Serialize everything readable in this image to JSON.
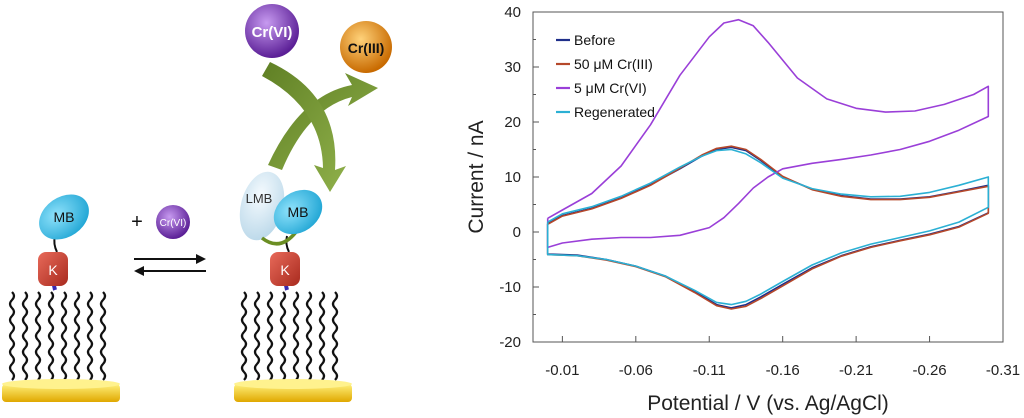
{
  "schematic": {
    "mb_label": "MB",
    "k_label": "K",
    "lmb_label": "LMB",
    "plus_sign": "+",
    "reactant_label": "Cr(VI)",
    "product_label": "Cr(III)",
    "colors": {
      "mb": "#3cc0e8",
      "lmb": "#cfe3ef",
      "k": "#c0392b",
      "crvi": "#7b2fb8",
      "criii": "#e8890c",
      "gold": "#f2cc1d",
      "arrow": "#6b8e23"
    }
  },
  "chart_data": {
    "type": "line",
    "xlabel": "Potential / V (vs. Ag/AgCl)",
    "ylabel": "Current / nA",
    "xlim": [
      0.01,
      -0.31
    ],
    "ylim": [
      -20,
      40
    ],
    "x_ticks": [
      -0.01,
      -0.06,
      -0.11,
      -0.16,
      -0.21,
      -0.26,
      -0.31
    ],
    "x_tick_labels": [
      "-0.01",
      "-0.06",
      "-0.11",
      "-0.16",
      "-0.21",
      "-0.26",
      "-0.31"
    ],
    "y_ticks": [
      -20,
      -10,
      0,
      10,
      20,
      30,
      40
    ],
    "y_tick_labels": [
      "-20",
      "-10",
      "0",
      "10",
      "20",
      "30",
      "40"
    ],
    "grid": false,
    "legend_position": "top-left",
    "series": [
      {
        "name": "Before",
        "color": "#1f2f8a",
        "x": [
          0.0,
          -0.01,
          -0.03,
          -0.05,
          -0.07,
          -0.09,
          -0.105,
          -0.115,
          -0.125,
          -0.135,
          -0.145,
          -0.16,
          -0.18,
          -0.2,
          -0.22,
          -0.24,
          -0.26,
          -0.28,
          -0.3,
          -0.3,
          -0.28,
          -0.26,
          -0.24,
          -0.22,
          -0.2,
          -0.18,
          -0.16,
          -0.145,
          -0.135,
          -0.125,
          -0.115,
          -0.1,
          -0.08,
          -0.06,
          -0.04,
          -0.02,
          0.0,
          0.0
        ],
        "y": [
          1.5,
          3.0,
          4.3,
          6.2,
          8.6,
          11.5,
          13.8,
          15.0,
          15.4,
          14.8,
          13.0,
          10.0,
          7.8,
          6.6,
          6.0,
          6.0,
          6.4,
          7.4,
          8.5,
          3.5,
          1.0,
          -0.4,
          -1.5,
          -2.7,
          -4.3,
          -6.5,
          -9.5,
          -11.8,
          -13.2,
          -13.8,
          -13.2,
          -10.8,
          -8.0,
          -6.2,
          -5.0,
          -4.2,
          -4.0,
          1.5
        ]
      },
      {
        "name": "50 μM Cr(III)",
        "color": "#b5482a",
        "x": [
          0.0,
          -0.01,
          -0.03,
          -0.05,
          -0.07,
          -0.09,
          -0.105,
          -0.115,
          -0.125,
          -0.135,
          -0.145,
          -0.16,
          -0.18,
          -0.2,
          -0.22,
          -0.24,
          -0.26,
          -0.28,
          -0.3,
          -0.3,
          -0.28,
          -0.26,
          -0.24,
          -0.22,
          -0.2,
          -0.18,
          -0.16,
          -0.145,
          -0.135,
          -0.125,
          -0.115,
          -0.1,
          -0.08,
          -0.06,
          -0.04,
          -0.02,
          0.0,
          0.0
        ],
        "y": [
          1.4,
          2.9,
          4.2,
          6.1,
          8.5,
          11.6,
          14.0,
          15.2,
          15.6,
          15.0,
          13.2,
          10.1,
          7.7,
          6.5,
          5.9,
          5.9,
          6.3,
          7.3,
          8.3,
          3.4,
          0.9,
          -0.5,
          -1.6,
          -2.8,
          -4.4,
          -6.7,
          -9.8,
          -12.1,
          -13.5,
          -14.0,
          -13.4,
          -11.0,
          -8.1,
          -6.3,
          -5.1,
          -4.3,
          -4.1,
          1.4
        ]
      },
      {
        "name": "5 μM Cr(VI)",
        "color": "#9a3fd8",
        "x": [
          0.0,
          -0.01,
          -0.03,
          -0.05,
          -0.07,
          -0.09,
          -0.11,
          -0.12,
          -0.13,
          -0.14,
          -0.15,
          -0.17,
          -0.19,
          -0.21,
          -0.23,
          -0.25,
          -0.27,
          -0.29,
          -0.3,
          -0.3,
          -0.28,
          -0.26,
          -0.24,
          -0.22,
          -0.2,
          -0.18,
          -0.16,
          -0.15,
          -0.14,
          -0.13,
          -0.12,
          -0.11,
          -0.09,
          -0.07,
          -0.05,
          -0.03,
          -0.01,
          0.0,
          0.0
        ],
        "y": [
          2.5,
          4.0,
          7.0,
          12.0,
          19.5,
          28.5,
          35.5,
          38.0,
          38.6,
          37.5,
          34.5,
          28.0,
          24.2,
          22.5,
          21.8,
          22.0,
          23.2,
          25.0,
          26.5,
          21.0,
          18.5,
          16.5,
          15.0,
          14.0,
          13.2,
          12.5,
          11.5,
          10.0,
          8.0,
          5.2,
          2.6,
          0.8,
          -0.6,
          -1.0,
          -1.0,
          -1.3,
          -2.0,
          -2.8,
          2.5
        ]
      },
      {
        "name": "Regenerated",
        "color": "#2bb0d4",
        "x": [
          0.0,
          -0.01,
          -0.03,
          -0.05,
          -0.07,
          -0.09,
          -0.105,
          -0.115,
          -0.125,
          -0.135,
          -0.145,
          -0.16,
          -0.18,
          -0.2,
          -0.22,
          -0.24,
          -0.26,
          -0.28,
          -0.3,
          -0.3,
          -0.28,
          -0.26,
          -0.24,
          -0.22,
          -0.2,
          -0.18,
          -0.16,
          -0.145,
          -0.135,
          -0.125,
          -0.115,
          -0.1,
          -0.08,
          -0.06,
          -0.04,
          -0.02,
          0.0,
          0.0
        ],
        "y": [
          1.8,
          3.3,
          4.6,
          6.5,
          8.9,
          11.8,
          13.8,
          14.8,
          15.0,
          14.2,
          12.6,
          9.8,
          7.9,
          6.9,
          6.4,
          6.5,
          7.2,
          8.5,
          10.0,
          4.5,
          1.8,
          0.2,
          -1.0,
          -2.2,
          -3.8,
          -6.0,
          -9.0,
          -11.3,
          -12.6,
          -13.2,
          -12.8,
          -10.6,
          -8.0,
          -6.2,
          -5.0,
          -4.3,
          -4.1,
          1.8
        ]
      }
    ]
  }
}
